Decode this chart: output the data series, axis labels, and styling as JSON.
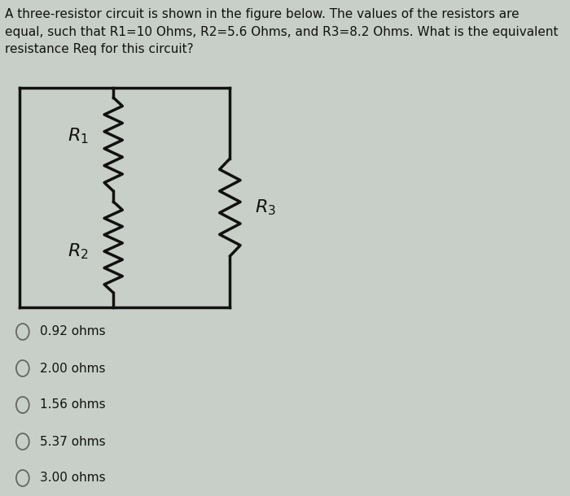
{
  "background_color": "#c8cfc8",
  "title_text": "A three-resistor circuit is shown in the figure below. The values of the resistors are\nequal, such that R1=10 Ohms, R2=5.6 Ohms, and R3=8.2 Ohms. What is the equivalent\nresistance Req for this circuit?",
  "title_fontsize": 11.0,
  "choices": [
    "0.92 ohms",
    "2.00 ohms",
    "1.56 ohms",
    "5.37 ohms",
    "3.00 ohms"
  ],
  "line_color": "#111111",
  "text_color": "#111111",
  "circle_color": "#666666"
}
